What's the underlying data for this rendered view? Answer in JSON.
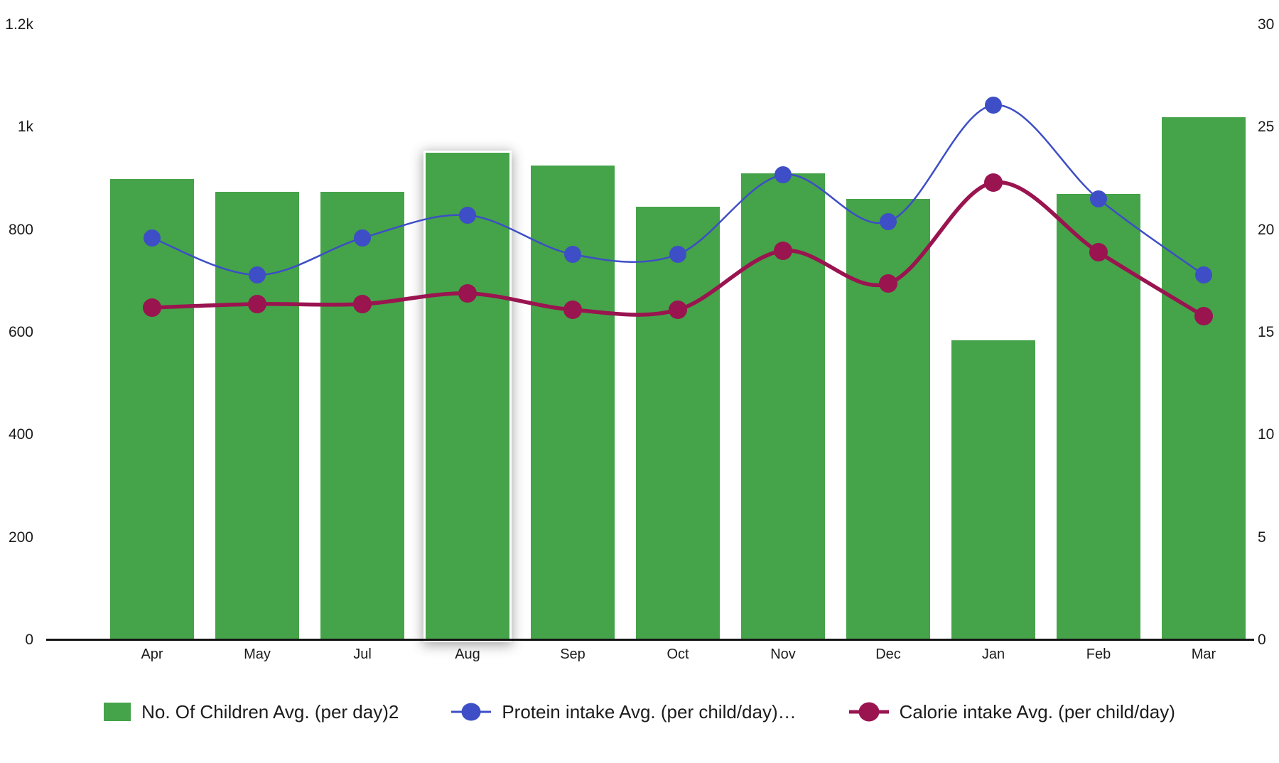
{
  "chart_data": {
    "type": "combo",
    "background": "#ffffff",
    "grid": false,
    "legend_position": "bottom",
    "categories": [
      "Apr",
      "May",
      "Jul",
      "Aug",
      "Sep",
      "Oct",
      "Nov",
      "Dec",
      "Jan",
      "Feb",
      "Mar"
    ],
    "series": [
      {
        "name": "No. Of Children Avg. (per day)2",
        "type": "bar",
        "axis": "left",
        "color": "#45a349",
        "values": [
          900,
          875,
          875,
          950,
          925,
          845,
          910,
          860,
          585,
          870,
          1020
        ],
        "highlighted_index": 3
      },
      {
        "name": "Protein intake Avg. (per child/day)…",
        "type": "line",
        "axis": "right",
        "color": "#3d4ec6",
        "values": [
          19.6,
          17.8,
          19.6,
          20.7,
          18.8,
          18.8,
          22.7,
          20.4,
          26.1,
          21.5,
          17.8
        ]
      },
      {
        "name": "Calorie intake Avg. (per child/day)",
        "type": "line",
        "axis": "right",
        "color": "#9a1450",
        "values": [
          16.2,
          16.4,
          16.4,
          16.9,
          16.1,
          16.1,
          19.0,
          17.4,
          22.3,
          18.9,
          15.8
        ]
      }
    ],
    "left_axis": {
      "min": 0,
      "max": 1200,
      "ticks": [
        {
          "label": "0",
          "value": 0
        },
        {
          "label": "200",
          "value": 200
        },
        {
          "label": "400",
          "value": 400
        },
        {
          "label": "600",
          "value": 600
        },
        {
          "label": "800",
          "value": 800
        },
        {
          "label": "1k",
          "value": 1000
        },
        {
          "label": "1.2k",
          "value": 1200
        }
      ]
    },
    "right_axis": {
      "min": 0,
      "max": 30,
      "ticks": [
        {
          "label": "0",
          "value": 0
        },
        {
          "label": "5",
          "value": 5
        },
        {
          "label": "10",
          "value": 10
        },
        {
          "label": "15",
          "value": 15
        },
        {
          "label": "20",
          "value": 20
        },
        {
          "label": "25",
          "value": 25
        },
        {
          "label": "30",
          "value": 30
        }
      ]
    }
  },
  "legend": {
    "items": [
      {
        "marker": "bar-swatch"
      },
      {
        "marker": "line-dot"
      },
      {
        "marker": "line-dot"
      }
    ]
  }
}
